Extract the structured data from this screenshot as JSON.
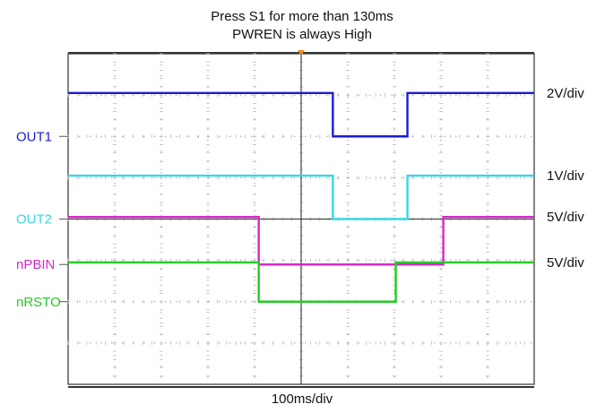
{
  "chart_data": {
    "type": "line",
    "title": "Press S1 for more than 130ms",
    "subtitle": "PWREN is always High",
    "time_scale": "100ms/div",
    "x_divisions": 10,
    "y_divisions": 8,
    "grid": true,
    "x_unit": "divisions",
    "series": [
      {
        "name": "OUT1",
        "color": "#1B1BD6",
        "scale": "2V/div",
        "high_level": 7.05,
        "low_level": 6.0,
        "low_from": 5.68,
        "low_to": 7.28
      },
      {
        "name": "OUT2",
        "color": "#35D7E3",
        "scale": "1V/div",
        "high_level": 5.05,
        "low_level": 4.0,
        "low_from": 5.68,
        "low_to": 7.28
      },
      {
        "name": "nPBIN",
        "color": "#D828C8",
        "scale": "5V/div",
        "high_level": 4.05,
        "low_level": 2.9,
        "low_from": 4.09,
        "low_to": 8.05
      },
      {
        "name": "nRSTO",
        "color": "#24CB24",
        "scale": "5V/div",
        "high_level": 2.95,
        "low_level": 2.0,
        "low_from": 4.09,
        "low_to": 7.03
      }
    ]
  }
}
